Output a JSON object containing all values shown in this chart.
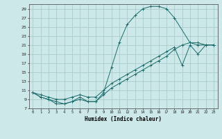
{
  "xlabel": "Humidex (Indice chaleur)",
  "background_color": "#cde8e8",
  "grid_color": "#aacccc",
  "line_color": "#1a6b6b",
  "xlim": [
    -0.5,
    23.5
  ],
  "ylim": [
    7,
    30
  ],
  "yticks": [
    7,
    9,
    11,
    13,
    15,
    17,
    19,
    21,
    23,
    25,
    27,
    29
  ],
  "xticks": [
    0,
    1,
    2,
    3,
    4,
    5,
    6,
    7,
    8,
    9,
    10,
    11,
    12,
    13,
    14,
    15,
    16,
    17,
    18,
    19,
    20,
    21,
    22,
    23
  ],
  "curve1_x": [
    0,
    1,
    2,
    3,
    4,
    5,
    6,
    7,
    8,
    9,
    10,
    11,
    12,
    13,
    14,
    15,
    16,
    17,
    18,
    20,
    21,
    22,
    23
  ],
  "curve1_y": [
    10.5,
    9.5,
    9.0,
    8.5,
    8.0,
    8.5,
    9.5,
    8.5,
    8.5,
    10.5,
    16.0,
    21.5,
    25.5,
    27.5,
    29.0,
    29.5,
    29.5,
    29.0,
    27.0,
    21.5,
    21.0,
    21.0,
    21.0
  ],
  "curve2_x": [
    0,
    1,
    2,
    3,
    4,
    5,
    6,
    7,
    8,
    9,
    10,
    11,
    12,
    13,
    14,
    15,
    16,
    17,
    18,
    19,
    20,
    21,
    22,
    23
  ],
  "curve2_y": [
    10.5,
    10.0,
    9.5,
    9.0,
    9.0,
    9.5,
    10.0,
    9.5,
    9.5,
    11.0,
    12.5,
    13.5,
    14.5,
    15.5,
    16.5,
    17.5,
    18.5,
    19.5,
    20.5,
    16.5,
    21.0,
    19.0,
    21.0,
    21.0
  ],
  "curve3_x": [
    0,
    1,
    2,
    3,
    4,
    5,
    6,
    7,
    8,
    9,
    10,
    11,
    12,
    13,
    14,
    15,
    16,
    17,
    18,
    19,
    20,
    21,
    22,
    23
  ],
  "curve3_y": [
    10.5,
    9.5,
    9.0,
    8.0,
    8.0,
    8.5,
    9.0,
    8.5,
    8.5,
    10.0,
    11.5,
    12.5,
    13.5,
    14.5,
    15.5,
    16.5,
    17.5,
    18.5,
    20.0,
    21.0,
    21.5,
    21.5,
    21.0,
    21.0
  ]
}
